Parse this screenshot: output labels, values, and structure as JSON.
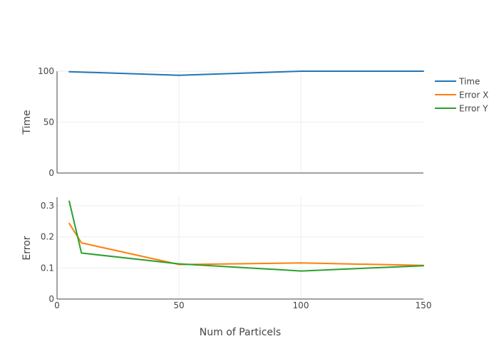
{
  "chart_data": {
    "type": "line",
    "xlabel": "Num of Particels",
    "x_ticks": [
      "0",
      "50",
      "100",
      "150"
    ],
    "xlim": [
      0,
      150
    ],
    "panels": [
      {
        "ylabel": "Time",
        "ylim": [
          0,
          100
        ],
        "y_ticks": [
          "0",
          "50",
          "100"
        ],
        "series": [
          {
            "name": "Time",
            "color": "#1f77b4",
            "x": [
              5,
              50,
              100,
              150
            ],
            "y": [
              99.5,
              96,
              100,
              100
            ]
          }
        ]
      },
      {
        "ylabel": "Error",
        "ylim": [
          0,
          0.33
        ],
        "y_ticks": [
          "0",
          "0.1",
          "0.2",
          "0.3"
        ],
        "series": [
          {
            "name": "Error X",
            "color": "#ff7f0e",
            "x": [
              5,
              10,
              50,
              100,
              150
            ],
            "y": [
              0.245,
              0.182,
              0.112,
              0.117,
              0.109
            ]
          },
          {
            "name": "Error Y",
            "color": "#2ca02c",
            "x": [
              5,
              10,
              50,
              100,
              150
            ],
            "y": [
              0.317,
              0.149,
              0.114,
              0.091,
              0.108
            ]
          }
        ]
      }
    ],
    "legend": {
      "position": "right",
      "entries": [
        {
          "name": "Time",
          "color": "#1f77b4"
        },
        {
          "name": "Error X",
          "color": "#ff7f0e"
        },
        {
          "name": "Error Y",
          "color": "#2ca02c"
        }
      ]
    },
    "grid": true
  }
}
